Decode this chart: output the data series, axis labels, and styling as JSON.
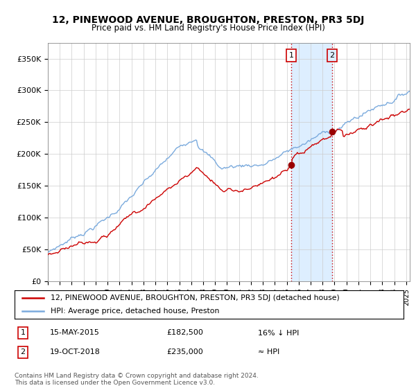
{
  "title": "12, PINEWOOD AVENUE, BROUGHTON, PRESTON, PR3 5DJ",
  "subtitle": "Price paid vs. HM Land Registry's House Price Index (HPI)",
  "ylabel_ticks": [
    "£0",
    "£50K",
    "£100K",
    "£150K",
    "£200K",
    "£250K",
    "£300K",
    "£350K"
  ],
  "ytick_values": [
    0,
    50000,
    100000,
    150000,
    200000,
    250000,
    300000,
    350000
  ],
  "ylim": [
    0,
    375000
  ],
  "xlim_start": 1995.0,
  "xlim_end": 2025.3,
  "sale1_x": 2015.37,
  "sale1_price": 182500,
  "sale2_x": 2018.8,
  "sale2_price": 235000,
  "legend_line1": "12, PINEWOOD AVENUE, BROUGHTON, PRESTON, PR3 5DJ (detached house)",
  "legend_line2": "HPI: Average price, detached house, Preston",
  "footer": "Contains HM Land Registry data © Crown copyright and database right 2024.\nThis data is licensed under the Open Government Licence v3.0.",
  "hpi_color": "#7aaadd",
  "price_color": "#cc0000",
  "shade_color": "#ddeeff",
  "marker_color": "#990000"
}
